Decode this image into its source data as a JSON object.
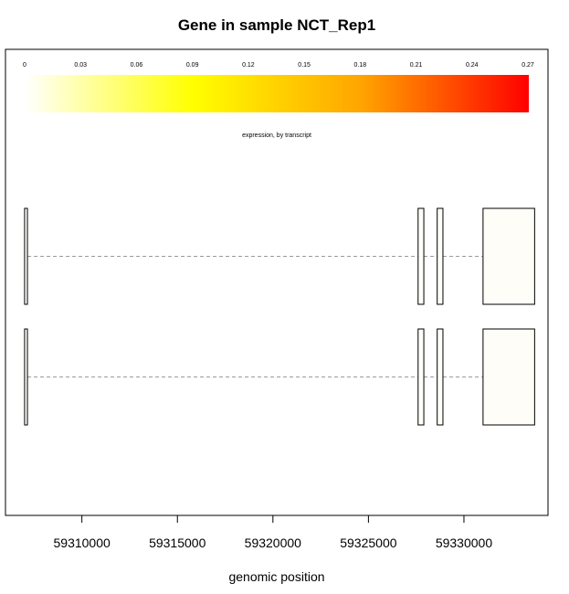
{
  "chart_data": {
    "type": "gene-structure",
    "title": "Gene in sample NCT_Rep1",
    "xlabel": "genomic position",
    "x_ticks": [
      59310000,
      59315000,
      59320000,
      59325000,
      59330000
    ],
    "x_tick_labels": [
      "59310000",
      "59315000",
      "59320000",
      "59325000",
      "59330000"
    ],
    "xlim": [
      59306000,
      59334400
    ],
    "color_scale": {
      "label": "expression, by transcript",
      "min": 0,
      "max": 0.27,
      "ticks": [
        "0",
        "0.03",
        "0.06",
        "0.09",
        "0.12",
        "0.15",
        "0.18",
        "0.21",
        "0.24",
        "0.27"
      ],
      "colors": [
        "#ffffff",
        "#ffff00",
        "#ffa500",
        "#ff0000"
      ]
    },
    "transcripts": [
      {
        "exons": [
          [
            59307000,
            59307150
          ],
          [
            59327600,
            59327900
          ],
          [
            59328600,
            59328900
          ],
          [
            59331000,
            59333700
          ]
        ],
        "fill": "#fffdf8"
      },
      {
        "exons": [
          [
            59307000,
            59307150
          ],
          [
            59327600,
            59327900
          ],
          [
            59328600,
            59328900
          ],
          [
            59331000,
            59333700
          ]
        ],
        "fill": "#fffdf8"
      }
    ]
  }
}
